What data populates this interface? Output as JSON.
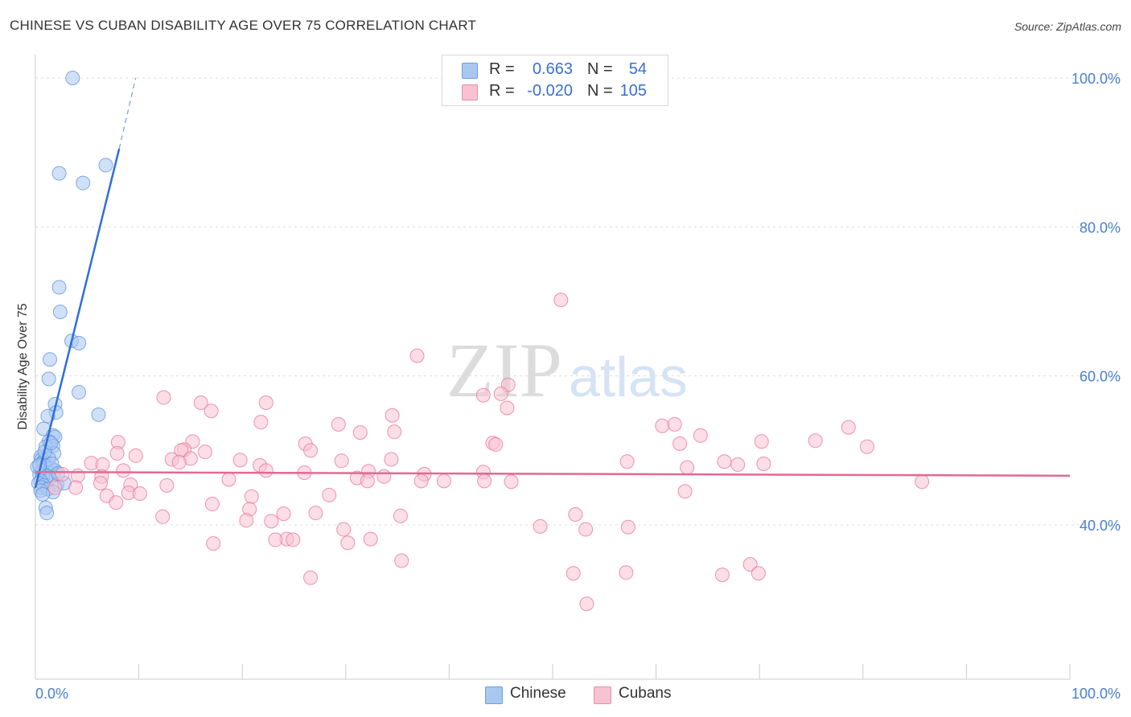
{
  "title": "CHINESE VS CUBAN DISABILITY AGE OVER 75 CORRELATION CHART",
  "source": "Source: ZipAtlas.com",
  "watermark": {
    "zip": "ZIP",
    "atlas": "atlas"
  },
  "legend": {
    "rows": [
      {
        "r_label": "R =",
        "r_value": "0.663",
        "n_label": "N =",
        "n_value": "54",
        "color": "#a9c8f0",
        "border": "#6f9be0"
      },
      {
        "r_label": "R =",
        "r_value": "-0.020",
        "n_label": "N =",
        "n_value": "105",
        "color": "#f7c2d2",
        "border": "#e890ab"
      }
    ]
  },
  "bottom_legend": [
    {
      "label": "Chinese",
      "color": "#a9c8f0",
      "border": "#6f9be0"
    },
    {
      "label": "Cubans",
      "color": "#f7c2d2",
      "border": "#e890ab"
    }
  ],
  "chart_data": {
    "type": "scatter",
    "title": "CHINESE VS CUBAN DISABILITY AGE OVER 75 CORRELATION CHART",
    "xlabel": "",
    "ylabel": "Disability Age Over 75",
    "xlim": [
      0,
      100
    ],
    "ylim": [
      20,
      102
    ],
    "x_tick_labels": [
      "0.0%",
      "100.0%"
    ],
    "y_ticks": [
      {
        "value": 40,
        "label": "40.0%"
      },
      {
        "value": 60,
        "label": "60.0%"
      },
      {
        "value": 80,
        "label": "80.0%"
      },
      {
        "value": 100,
        "label": "100.0%"
      }
    ],
    "series": [
      {
        "name": "Chinese",
        "color": "#5b8fe0",
        "fill": "#a9c8f0",
        "r": 0.663,
        "n": 54,
        "trend": {
          "x0": 0.0,
          "y0": 45.0,
          "x1": 8.1,
          "y1": 90.5,
          "dash_x1": 9.7,
          "dash_y1": 100.0
        },
        "points": [
          [
            3.6,
            100
          ],
          [
            2.3,
            87.2
          ],
          [
            4.6,
            85.9
          ],
          [
            6.8,
            88.3
          ],
          [
            2.3,
            71.9
          ],
          [
            2.4,
            68.6
          ],
          [
            3.5,
            64.7
          ],
          [
            4.2,
            64.4
          ],
          [
            1.4,
            62.2
          ],
          [
            1.3,
            59.6
          ],
          [
            4.2,
            57.8
          ],
          [
            1.9,
            56.2
          ],
          [
            6.1,
            54.8
          ],
          [
            2.0,
            55.1
          ],
          [
            1.2,
            54.6
          ],
          [
            0.8,
            52.9
          ],
          [
            1.7,
            52.0
          ],
          [
            1.9,
            51.8
          ],
          [
            1.3,
            51.2
          ],
          [
            1.7,
            50.6
          ],
          [
            1.0,
            50.5
          ],
          [
            1.8,
            49.6
          ],
          [
            0.5,
            49.1
          ],
          [
            0.6,
            48.8
          ],
          [
            0.8,
            48.6
          ],
          [
            1.3,
            48.9
          ],
          [
            0.7,
            48.3
          ],
          [
            1.0,
            47.9
          ],
          [
            1.5,
            47.6
          ],
          [
            0.6,
            47.2
          ],
          [
            1.2,
            47.0
          ],
          [
            1.9,
            47.3
          ],
          [
            0.4,
            46.8
          ],
          [
            1.1,
            46.6
          ],
          [
            0.7,
            46.5
          ],
          [
            1.4,
            46.2
          ],
          [
            0.5,
            45.9
          ],
          [
            0.3,
            45.6
          ],
          [
            0.8,
            45.3
          ],
          [
            2.1,
            45.4
          ],
          [
            2.8,
            45.6
          ],
          [
            0.6,
            45.0
          ],
          [
            1.2,
            44.8
          ],
          [
            0.5,
            44.6
          ],
          [
            1.7,
            44.4
          ],
          [
            0.7,
            44.1
          ],
          [
            1.0,
            42.3
          ],
          [
            1.1,
            41.6
          ],
          [
            0.2,
            47.8
          ],
          [
            1.6,
            48.2
          ],
          [
            2.2,
            46.9
          ],
          [
            0.9,
            49.8
          ],
          [
            1.5,
            51.0
          ],
          [
            0.4,
            48.0
          ]
        ]
      },
      {
        "name": "Cubans",
        "color": "#e8709a",
        "fill": "#f7c2d2",
        "r": -0.02,
        "n": 105,
        "trend": {
          "x0": 0.0,
          "y0": 47.1,
          "x1": 100.0,
          "y1": 46.6
        },
        "points": [
          [
            50.8,
            70.2
          ],
          [
            36.9,
            62.7
          ],
          [
            45.7,
            58.8
          ],
          [
            43.3,
            57.4
          ],
          [
            45.0,
            57.6
          ],
          [
            12.4,
            57.1
          ],
          [
            16.0,
            56.4
          ],
          [
            22.3,
            56.4
          ],
          [
            17.0,
            55.3
          ],
          [
            45.6,
            55.7
          ],
          [
            34.5,
            54.7
          ],
          [
            21.8,
            53.8
          ],
          [
            29.3,
            53.5
          ],
          [
            60.6,
            53.3
          ],
          [
            61.8,
            53.5
          ],
          [
            31.4,
            52.4
          ],
          [
            34.7,
            52.5
          ],
          [
            64.3,
            52.0
          ],
          [
            78.6,
            53.1
          ],
          [
            15.2,
            51.2
          ],
          [
            8.0,
            51.1
          ],
          [
            26.1,
            50.9
          ],
          [
            44.2,
            51.0
          ],
          [
            44.5,
            50.8
          ],
          [
            62.3,
            50.9
          ],
          [
            70.2,
            51.2
          ],
          [
            75.4,
            51.3
          ],
          [
            80.4,
            50.5
          ],
          [
            14.4,
            50.1
          ],
          [
            14.1,
            50.0
          ],
          [
            16.4,
            49.8
          ],
          [
            26.6,
            50.0
          ],
          [
            7.9,
            49.6
          ],
          [
            9.7,
            49.3
          ],
          [
            13.2,
            48.8
          ],
          [
            15.0,
            48.9
          ],
          [
            19.8,
            48.7
          ],
          [
            29.6,
            48.6
          ],
          [
            34.4,
            48.8
          ],
          [
            57.2,
            48.5
          ],
          [
            66.6,
            48.5
          ],
          [
            5.4,
            48.3
          ],
          [
            13.9,
            48.4
          ],
          [
            21.7,
            48.0
          ],
          [
            6.5,
            48.1
          ],
          [
            63.0,
            47.7
          ],
          [
            67.9,
            48.1
          ],
          [
            70.4,
            48.2
          ],
          [
            8.5,
            47.3
          ],
          [
            22.3,
            47.3
          ],
          [
            32.2,
            47.2
          ],
          [
            43.3,
            47.1
          ],
          [
            26.0,
            47.0
          ],
          [
            37.6,
            46.8
          ],
          [
            2.6,
            46.8
          ],
          [
            4.1,
            46.6
          ],
          [
            6.4,
            46.5
          ],
          [
            31.1,
            46.3
          ],
          [
            18.7,
            46.1
          ],
          [
            37.3,
            45.9
          ],
          [
            43.4,
            45.9
          ],
          [
            33.7,
            46.5
          ],
          [
            46.0,
            45.8
          ],
          [
            32.1,
            45.9
          ],
          [
            39.5,
            45.9
          ],
          [
            85.7,
            45.8
          ],
          [
            6.3,
            45.6
          ],
          [
            9.2,
            45.4
          ],
          [
            12.7,
            45.3
          ],
          [
            1.9,
            45.0
          ],
          [
            3.9,
            45.0
          ],
          [
            9.0,
            44.3
          ],
          [
            10.1,
            44.2
          ],
          [
            6.9,
            43.9
          ],
          [
            20.9,
            43.8
          ],
          [
            28.4,
            44.0
          ],
          [
            62.8,
            44.5
          ],
          [
            7.8,
            43.0
          ],
          [
            17.1,
            42.8
          ],
          [
            20.7,
            42.1
          ],
          [
            27.1,
            41.6
          ],
          [
            35.3,
            41.2
          ],
          [
            24.0,
            41.5
          ],
          [
            12.3,
            41.1
          ],
          [
            52.2,
            41.4
          ],
          [
            20.4,
            40.6
          ],
          [
            22.8,
            40.5
          ],
          [
            48.8,
            39.8
          ],
          [
            57.3,
            39.7
          ],
          [
            53.2,
            39.4
          ],
          [
            29.8,
            39.4
          ],
          [
            24.3,
            38.1
          ],
          [
            24.9,
            38.0
          ],
          [
            35.4,
            35.2
          ],
          [
            52.0,
            33.5
          ],
          [
            57.1,
            33.6
          ],
          [
            66.4,
            33.3
          ],
          [
            69.1,
            34.7
          ],
          [
            69.9,
            33.5
          ],
          [
            26.6,
            32.9
          ],
          [
            53.3,
            29.4
          ],
          [
            32.4,
            38.1
          ],
          [
            17.2,
            37.5
          ],
          [
            30.2,
            37.6
          ],
          [
            23.2,
            38.0
          ]
        ]
      }
    ]
  }
}
